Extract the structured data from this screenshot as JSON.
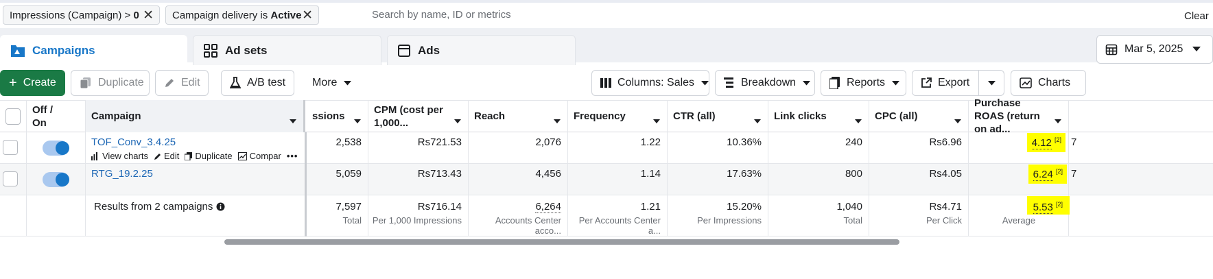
{
  "filters": {
    "chip1_label": "Impressions (Campaign) > ",
    "chip1_value": "0",
    "chip2_label": "Campaign delivery is ",
    "chip2_value": "Active",
    "search_placeholder": "Search by name, ID or metrics",
    "clear_label": "Clear"
  },
  "tabs": [
    {
      "label": "Campaigns",
      "icon": "folder-icon"
    },
    {
      "label": "Ad sets",
      "icon": "grid-icon"
    },
    {
      "label": "Ads",
      "icon": "ad-icon"
    }
  ],
  "date_range": "Mar 5, 2025",
  "toolbar": {
    "create": "Create",
    "duplicate": "Duplicate",
    "edit": "Edit",
    "ab_test": "A/B test",
    "more": "More",
    "columns": "Columns: Sales",
    "breakdown": "Breakdown",
    "reports": "Reports",
    "export": "Export",
    "charts": "Charts"
  },
  "columns": {
    "off_on": "Off / On",
    "campaign": "Campaign",
    "impressions": "ssions",
    "cpm": "CPM (cost per 1,000...",
    "reach": "Reach",
    "frequency": "Frequency",
    "ctr": "CTR (all)",
    "link_clicks": "Link clicks",
    "cpc": "CPC (all)",
    "roas": "Purchase ROAS (return on ad..."
  },
  "rows": [
    {
      "name": "TOF_Conv_3.4.25",
      "on": true,
      "impressions": "2,538",
      "cpm": "Rs721.53",
      "reach": "2,076",
      "frequency": "1.22",
      "ctr": "10.36%",
      "link_clicks": "240",
      "cpc": "Rs6.96",
      "roas": "4.12",
      "roas_note": "[2]",
      "actions": {
        "view_charts": "View charts",
        "edit": "Edit",
        "duplicate": "Duplicate",
        "compare": "Compar"
      }
    },
    {
      "name": "RTG_19.2.25",
      "on": true,
      "impressions": "5,059",
      "cpm": "Rs713.43",
      "reach": "4,456",
      "frequency": "1.14",
      "ctr": "17.63%",
      "link_clicks": "800",
      "cpc": "Rs4.05",
      "roas": "6.24",
      "roas_note": "[2]"
    }
  ],
  "totals": {
    "label": "Results from 2 campaigns",
    "impressions": "7,597",
    "impressions_sub": "Total",
    "cpm": "Rs716.14",
    "cpm_sub": "Per 1,000 Impressions",
    "reach": "6,264",
    "reach_sub": "Accounts Center acco...",
    "frequency": "1.21",
    "frequency_sub": "Per Accounts Center a...",
    "ctr": "15.20%",
    "ctr_sub": "Per Impressions",
    "link_clicks": "1,040",
    "link_clicks_sub": "Total",
    "cpc": "Rs4.71",
    "cpc_sub": "Per Click",
    "roas": "5.53",
    "roas_note": "[2]",
    "roas_sub": "Average"
  },
  "right_edge_glyph": "7",
  "colors": {
    "accent": "#1877c8",
    "create": "#1a7a45",
    "highlight": "#ffff00"
  }
}
